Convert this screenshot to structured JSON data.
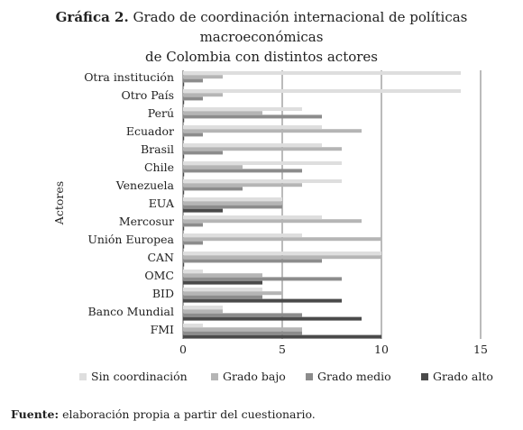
{
  "title": {
    "label": "Gráfica 2.",
    "line1": "Grado de coordinación internacional de políticas macroeconómicas",
    "line2": "de Colombia con distintos actores"
  },
  "source": {
    "label": "Fuente:",
    "text": "elaboración propia a partir del cuestionario."
  },
  "chart_data": {
    "type": "bar",
    "orientation": "horizontal",
    "categories": [
      "Otra institución",
      "Otro País",
      "Perú",
      "Ecuador",
      "Brasil",
      "Chile",
      "Venezuela",
      "EUA",
      "Mercosur",
      "Unión Europea",
      "CAN",
      "OMC",
      "BID",
      "Banco Mundial",
      "FMI"
    ],
    "series": [
      {
        "name": "Sin coordinación",
        "color": "#dedede",
        "values": [
          14,
          14,
          6,
          7,
          7,
          8,
          8,
          5,
          7,
          6,
          10,
          1,
          4,
          2,
          1
        ]
      },
      {
        "name": "Grado bajo",
        "color": "#b5b5b5",
        "values": [
          2,
          2,
          4,
          9,
          8,
          3,
          6,
          5,
          9,
          10,
          10,
          4,
          5,
          2,
          6
        ]
      },
      {
        "name": "Grado medio",
        "color": "#8c8c8c",
        "values": [
          1,
          1,
          7,
          1,
          2,
          6,
          3,
          5,
          1,
          1,
          7,
          8,
          4,
          6,
          6
        ]
      },
      {
        "name": "Grado alto",
        "color": "#4a4a4a",
        "values": [
          0,
          0,
          0,
          0,
          0,
          0,
          0,
          2,
          0,
          0,
          0,
          4,
          8,
          9,
          10
        ]
      }
    ],
    "xticks": [
      "0",
      "5",
      "10",
      "15"
    ],
    "xlim": [
      0,
      15
    ],
    "ylabel": "Actores",
    "xlabel": "",
    "grid": "vertical",
    "legend_position": "bottom"
  }
}
